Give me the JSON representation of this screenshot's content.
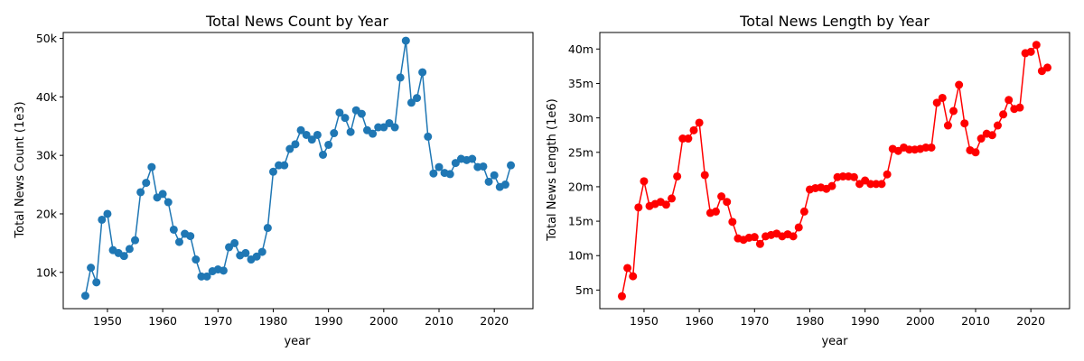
{
  "chart_data": [
    {
      "type": "line",
      "title": "Total News Count by Year",
      "xlabel": "year",
      "ylabel": "Total News Count (1e3)",
      "color": "#1f77b4",
      "marker": "circle",
      "grid": false,
      "xlim": [
        1942,
        2027
      ],
      "ylim": [
        3800,
        51000
      ],
      "xticks": [
        1950,
        1960,
        1970,
        1980,
        1990,
        2000,
        2010,
        2020
      ],
      "xtick_labels": [
        "1950",
        "1960",
        "1970",
        "1980",
        "1990",
        "2000",
        "2010",
        "2020"
      ],
      "yticks": [
        10000,
        20000,
        30000,
        40000,
        50000
      ],
      "ytick_labels": [
        "10k",
        "20k",
        "30k",
        "40k",
        "50k"
      ],
      "x": [
        1946,
        1947,
        1948,
        1949,
        1950,
        1951,
        1952,
        1953,
        1954,
        1955,
        1956,
        1957,
        1958,
        1959,
        1960,
        1961,
        1962,
        1963,
        1964,
        1965,
        1966,
        1967,
        1968,
        1969,
        1970,
        1971,
        1972,
        1973,
        1974,
        1975,
        1976,
        1977,
        1978,
        1979,
        1980,
        1981,
        1982,
        1983,
        1984,
        1985,
        1986,
        1987,
        1988,
        1989,
        1990,
        1991,
        1992,
        1993,
        1994,
        1995,
        1996,
        1997,
        1998,
        1999,
        2000,
        2001,
        2002,
        2003,
        2004,
        2005,
        2006,
        2007,
        2008,
        2009,
        2010,
        2011,
        2012,
        2013,
        2014,
        2015,
        2016,
        2017,
        2018,
        2019,
        2020,
        2021,
        2022,
        2023
      ],
      "y": [
        6000,
        10800,
        8300,
        19000,
        20000,
        13800,
        13300,
        12800,
        14000,
        15500,
        23700,
        25300,
        28000,
        22800,
        23400,
        22000,
        17300,
        15200,
        16600,
        16200,
        12200,
        9300,
        9300,
        10200,
        10500,
        10300,
        14300,
        15000,
        12900,
        13300,
        12200,
        12700,
        13500,
        17600,
        27200,
        28300,
        28300,
        31100,
        31900,
        34300,
        33500,
        32700,
        33500,
        30100,
        31800,
        33800,
        37300,
        36400,
        34000,
        37700,
        37100,
        34300,
        33700,
        34800,
        34800,
        35500,
        34800,
        43300,
        49600,
        39000,
        39800,
        44200,
        33200,
        26900,
        28000,
        27000,
        26800,
        28700,
        29400,
        29200,
        29400,
        28000,
        28100,
        25500,
        26600,
        24600,
        25000,
        28300
      ]
    },
    {
      "type": "line",
      "title": "Total News Length by Year",
      "xlabel": "year",
      "ylabel": "Total News Length (1e6)",
      "color": "#ff0000",
      "marker": "circle",
      "grid": false,
      "xlim": [
        1942,
        2027
      ],
      "ylim": [
        2300000,
        42400000
      ],
      "xticks": [
        1950,
        1960,
        1970,
        1980,
        1990,
        2000,
        2010,
        2020
      ],
      "xtick_labels": [
        "1950",
        "1960",
        "1970",
        "1980",
        "1990",
        "2000",
        "2010",
        "2020"
      ],
      "yticks": [
        5000000,
        10000000,
        15000000,
        20000000,
        25000000,
        30000000,
        35000000,
        40000000
      ],
      "ytick_labels": [
        "5m",
        "10m",
        "15m",
        "20m",
        "25m",
        "30m",
        "35m",
        "40m"
      ],
      "x": [
        1946,
        1947,
        1948,
        1949,
        1950,
        1951,
        1952,
        1953,
        1954,
        1955,
        1956,
        1957,
        1958,
        1959,
        1960,
        1961,
        1962,
        1963,
        1964,
        1965,
        1966,
        1967,
        1968,
        1969,
        1970,
        1971,
        1972,
        1973,
        1974,
        1975,
        1976,
        1977,
        1978,
        1979,
        1980,
        1981,
        1982,
        1983,
        1984,
        1985,
        1986,
        1987,
        1988,
        1989,
        1990,
        1991,
        1992,
        1993,
        1994,
        1995,
        1996,
        1997,
        1998,
        1999,
        2000,
        2001,
        2002,
        2003,
        2004,
        2005,
        2006,
        2007,
        2008,
        2009,
        2010,
        2011,
        2012,
        2013,
        2014,
        2015,
        2016,
        2017,
        2018,
        2019,
        2020,
        2021,
        2022,
        2023
      ],
      "y": [
        4100000,
        8200000,
        7000000,
        17000000,
        20800000,
        17200000,
        17500000,
        17800000,
        17400000,
        18300000,
        21500000,
        27000000,
        27000000,
        28200000,
        29300000,
        21700000,
        16200000,
        16400000,
        18600000,
        17800000,
        14900000,
        12500000,
        12300000,
        12600000,
        12700000,
        11700000,
        12800000,
        13000000,
        13200000,
        12800000,
        13100000,
        12800000,
        14100000,
        16400000,
        19600000,
        19800000,
        19900000,
        19700000,
        20100000,
        21400000,
        21500000,
        21500000,
        21400000,
        20400000,
        20900000,
        20400000,
        20400000,
        20400000,
        21800000,
        25500000,
        25200000,
        25700000,
        25400000,
        25400000,
        25500000,
        25700000,
        25700000,
        32200000,
        32900000,
        28900000,
        31000000,
        34800000,
        29200000,
        25300000,
        25000000,
        27000000,
        27700000,
        27500000,
        28900000,
        30500000,
        32600000,
        31300000,
        31500000,
        39400000,
        39600000,
        40600000,
        36800000,
        37300000
      ]
    }
  ]
}
